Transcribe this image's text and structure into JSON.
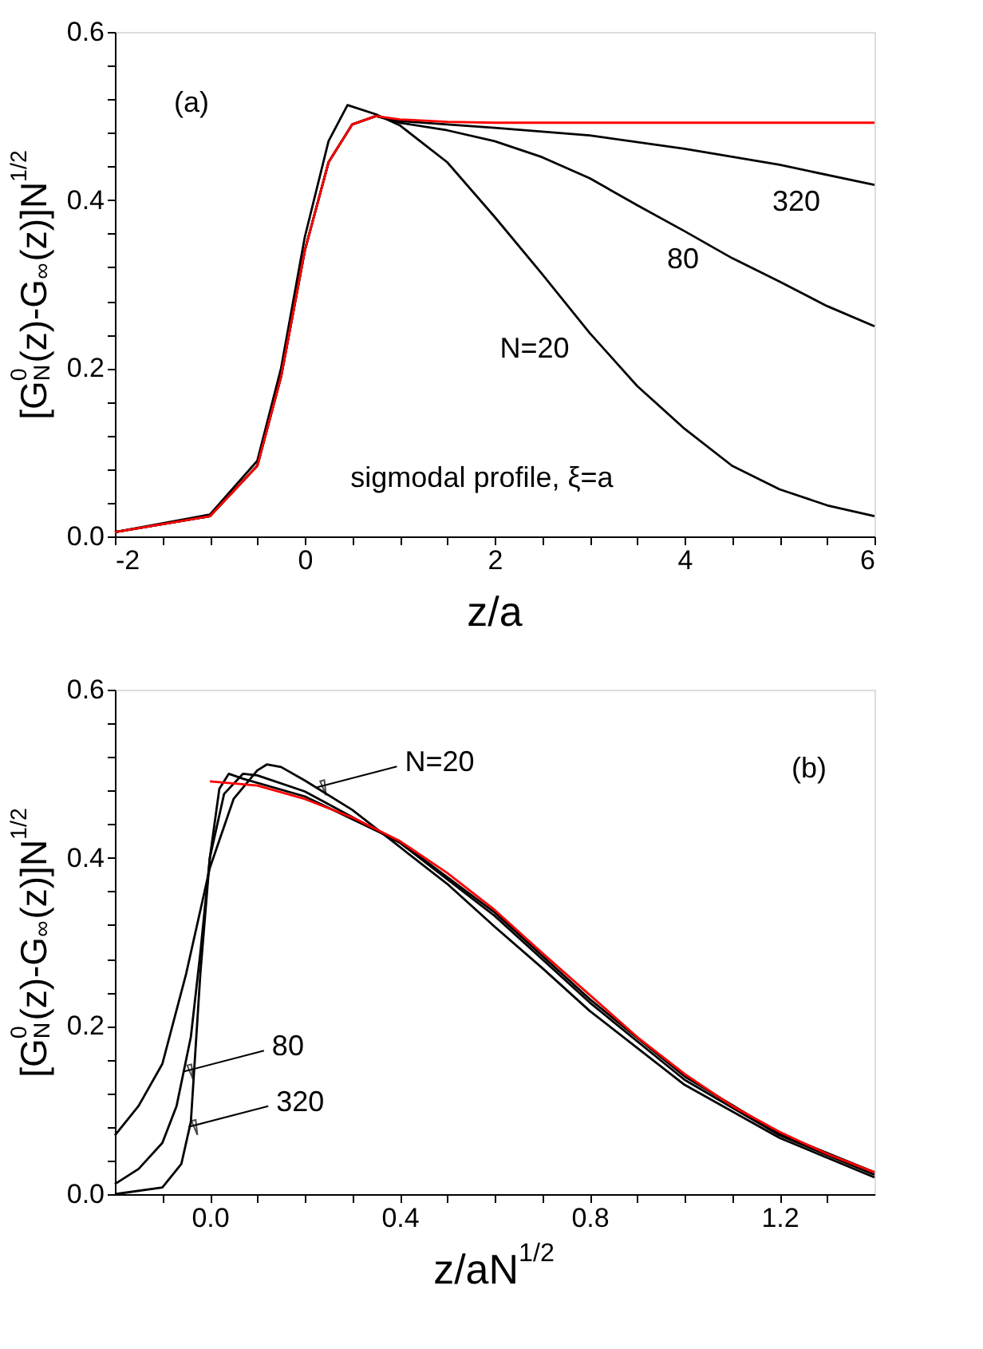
{
  "chart_data": [
    {
      "type": "line",
      "xlabel": "z/a",
      "ylabel": "[G$^{0}$$_{N}$(z)-G$_{∞}$(z)]N$^{1/2}$",
      "xlim": [
        -2,
        6
      ],
      "ylim": [
        0,
        0.6
      ],
      "xticks": [
        -2,
        {
          "value": -1.5,
          "label": null
        },
        {
          "value": -1,
          "label": null
        },
        {
          "value": -0.5,
          "label": null
        },
        0,
        {
          "value": 0.5,
          "label": null
        },
        {
          "value": 1,
          "label": null
        },
        {
          "value": 1.5,
          "label": null
        },
        2,
        {
          "value": 2.5,
          "label": null
        },
        {
          "value": 3,
          "label": null
        },
        {
          "value": 3.5,
          "label": null
        },
        4,
        {
          "value": 4.5,
          "label": null
        },
        {
          "value": 5,
          "label": null
        },
        {
          "value": 5.5,
          "label": null
        },
        6
      ],
      "yticks": [
        {
          "value": 0,
          "label": "0.0"
        },
        {
          "value": 0.04,
          "label": null
        },
        {
          "value": 0.08,
          "label": null
        },
        {
          "value": 0.12,
          "label": null
        },
        {
          "value": 0.16,
          "label": null
        },
        0.2,
        {
          "value": 0.24,
          "label": null
        },
        {
          "value": 0.28,
          "label": null
        },
        {
          "value": 0.32,
          "label": null
        },
        {
          "value": 0.36,
          "label": null
        },
        0.4,
        {
          "value": 0.44,
          "label": null
        },
        {
          "value": 0.48,
          "label": null
        },
        {
          "value": 0.52,
          "label": null
        },
        {
          "value": 0.56,
          "label": null
        },
        0.6
      ],
      "grid": false,
      "legend": false,
      "line_style": "solid",
      "marker": "none",
      "series": [
        {
          "color": "#000000",
          "x": [
            -2,
            -1,
            -0.5,
            -0.25,
            0,
            0.25,
            0.45,
            0.75,
            1,
            1.5,
            2,
            2.5,
            3,
            3.5,
            4,
            4.5,
            5,
            5.5,
            6
          ],
          "values": [
            0.005,
            0.026,
            0.09,
            0.2,
            0.356,
            0.47,
            0.513,
            0.502,
            0.489,
            0.445,
            0.38,
            0.312,
            0.242,
            0.179,
            0.128,
            0.084,
            0.056,
            0.037,
            0.024
          ]
        },
        {
          "color": "#000000",
          "x": [
            -2,
            -1,
            -0.5,
            -0.25,
            0,
            0.25,
            0.5,
            0.75,
            1,
            1.5,
            2,
            2.5,
            3,
            3.5,
            4,
            4.5,
            5,
            5.5,
            6
          ],
          "values": [
            0.005,
            0.024,
            0.084,
            0.19,
            0.34,
            0.445,
            0.49,
            0.5,
            0.492,
            0.483,
            0.47,
            0.451,
            0.426,
            0.394,
            0.363,
            0.331,
            0.303,
            0.274,
            0.25
          ]
        },
        {
          "color": "#000000",
          "x": [
            -2,
            -1,
            -0.5,
            -0.25,
            0,
            0.25,
            0.5,
            0.75,
            1,
            2,
            3,
            4,
            5,
            6
          ],
          "values": [
            0.005,
            0.024,
            0.084,
            0.19,
            0.34,
            0.445,
            0.49,
            0.5,
            0.494,
            0.486,
            0.477,
            0.461,
            0.442,
            0.418
          ]
        },
        {
          "color": "#ff0000",
          "x": [
            -2,
            -1,
            -0.5,
            -0.25,
            0,
            0.25,
            0.5,
            0.75,
            1,
            1.5,
            2,
            3,
            4,
            5,
            6
          ],
          "values": [
            0.005,
            0.024,
            0.084,
            0.19,
            0.34,
            0.445,
            0.49,
            0.5,
            0.496,
            0.493,
            0.492,
            0.492,
            0.492,
            0.492,
            0.492
          ]
        }
      ],
      "annotations": [
        "(a)",
        "sigmodal profile, ξ=a",
        "N=20",
        "80",
        "320"
      ]
    },
    {
      "type": "line",
      "xlabel": "z/aN$^{1/2}$",
      "ylabel": "[G$^{0}$$_{N}$(z)-G$_{∞}$(z)]N$^{1/2}$",
      "xlim": [
        -0.2,
        1.4
      ],
      "ylim": [
        0,
        0.6
      ],
      "xticks": [
        {
          "value": -0.1,
          "label": null
        },
        {
          "value": 0,
          "label": "0.0"
        },
        {
          "value": 0.1,
          "label": null
        },
        {
          "value": 0.2,
          "label": null
        },
        {
          "value": 0.3,
          "label": null
        },
        0.4,
        {
          "value": 0.5,
          "label": null
        },
        {
          "value": 0.6,
          "label": null
        },
        {
          "value": 0.7,
          "label": null
        },
        0.8,
        {
          "value": 0.9,
          "label": null
        },
        {
          "value": 1.0,
          "label": null
        },
        {
          "value": 1.1,
          "label": null
        },
        1.2,
        {
          "value": 1.3,
          "label": null
        }
      ],
      "yticks": [
        {
          "value": 0,
          "label": "0.0"
        },
        {
          "value": 0.04,
          "label": null
        },
        {
          "value": 0.08,
          "label": null
        },
        {
          "value": 0.12,
          "label": null
        },
        {
          "value": 0.16,
          "label": null
        },
        0.2,
        {
          "value": 0.24,
          "label": null
        },
        {
          "value": 0.28,
          "label": null
        },
        {
          "value": 0.32,
          "label": null
        },
        {
          "value": 0.36,
          "label": null
        },
        0.4,
        {
          "value": 0.44,
          "label": null
        },
        {
          "value": 0.48,
          "label": null
        },
        {
          "value": 0.52,
          "label": null
        },
        {
          "value": 0.56,
          "label": null
        },
        0.6
      ],
      "grid": false,
      "legend": false,
      "line_style": "solid",
      "marker": "none",
      "series": [
        {
          "color": "#000000",
          "x": [
            -0.2,
            -0.15,
            -0.1,
            -0.05,
            0,
            0.05,
            0.1,
            0.12,
            0.15,
            0.2,
            0.3,
            0.4,
            0.5,
            0.6,
            0.7,
            0.8,
            1.0,
            1.2,
            1.4
          ],
          "values": [
            0.07,
            0.105,
            0.155,
            0.262,
            0.388,
            0.47,
            0.504,
            0.511,
            0.508,
            0.492,
            0.457,
            0.413,
            0.369,
            0.318,
            0.269,
            0.218,
            0.13,
            0.067,
            0.02
          ]
        },
        {
          "color": "#000000",
          "x": [
            -0.2,
            -0.15,
            -0.1,
            -0.07,
            -0.04,
            -0.02,
            0,
            0.03,
            0.07,
            0.1,
            0.2,
            0.4,
            0.6,
            0.8,
            1.0,
            1.2,
            1.4
          ],
          "values": [
            0.012,
            0.03,
            0.061,
            0.105,
            0.187,
            0.287,
            0.4,
            0.476,
            0.5,
            0.498,
            0.479,
            0.418,
            0.331,
            0.228,
            0.136,
            0.07,
            0.023
          ]
        },
        {
          "color": "#000000",
          "x": [
            -0.2,
            -0.1,
            -0.06,
            -0.04,
            -0.02,
            0,
            0.02,
            0.04,
            0.07,
            0.2,
            0.4,
            0.6,
            0.8,
            1.0,
            1.2,
            1.4
          ],
          "values": [
            0,
            0.008,
            0.036,
            0.086,
            0.262,
            0.4,
            0.482,
            0.5,
            0.494,
            0.473,
            0.419,
            0.335,
            0.232,
            0.14,
            0.072,
            0.026
          ]
        },
        {
          "color": "#ff0000",
          "x": [
            0,
            0.1,
            0.2,
            0.3,
            0.4,
            0.5,
            0.6,
            0.7,
            0.8,
            0.9,
            1.0,
            1.1,
            1.2,
            1.3,
            1.4
          ],
          "values": [
            0.491,
            0.486,
            0.47,
            0.448,
            0.42,
            0.382,
            0.338,
            0.287,
            0.237,
            0.187,
            0.143,
            0.105,
            0.074,
            0.048,
            0.026
          ]
        }
      ],
      "annotations": [
        "(b)",
        {
          "text": "N=20",
          "x": 0.226,
          "y": 0.484
        },
        {
          "text": "80",
          "x": -0.054,
          "y": 0.146
        },
        {
          "text": "320",
          "x": -0.045,
          "y": 0.08
        }
      ]
    }
  ]
}
